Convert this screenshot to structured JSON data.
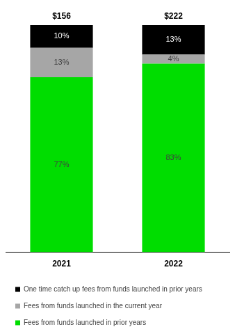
{
  "chart_data": {
    "type": "bar",
    "stacked": true,
    "data_labels": true,
    "tick_labels": "x",
    "grid": false,
    "legend": "bottom",
    "categories": [
      "2021",
      "2022"
    ],
    "ylim": [
      0,
      100
    ],
    "series": [
      {
        "name": "Fees from funds launched in prior years",
        "color": "#00dd00",
        "values": [
          77,
          83
        ],
        "value_labels": [
          "77%",
          "83%"
        ]
      },
      {
        "name": "Fees from funds launched in the current year",
        "color": "#a6a6a6",
        "values": [
          13,
          4
        ],
        "value_labels": [
          "13%",
          "4%"
        ]
      },
      {
        "name": "One time catch up fees from funds launched in prior years",
        "color": "#000000",
        "values": [
          10,
          13
        ],
        "value_labels": [
          "10%",
          "13%"
        ]
      }
    ],
    "totals": [
      156,
      222
    ],
    "total_labels": [
      "$156",
      "$222"
    ]
  }
}
